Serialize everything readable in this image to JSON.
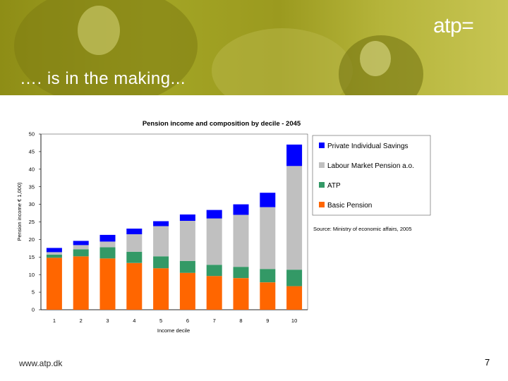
{
  "header": {
    "headline": "…. is in the making...",
    "logo": "atp="
  },
  "footer": {
    "url": "www.atp.dk",
    "page_number": "7"
  },
  "colors": {
    "banner": "#9c9c1e",
    "private_savings": "#0000ff",
    "labour_market": "#c0c0c0",
    "atp": "#339966",
    "basic_pension": "#ff6600"
  },
  "chart_data": {
    "type": "bar",
    "stacked": true,
    "title": "Pension income and composition by decile - 2045",
    "xlabel": "Income decile",
    "ylabel": "Pension income € 1,000)",
    "categories": [
      "1",
      "2",
      "3",
      "4",
      "5",
      "6",
      "7",
      "8",
      "9",
      "10"
    ],
    "ylim": [
      0,
      50
    ],
    "yticks": [
      "0",
      "5",
      "10",
      "15",
      "20",
      "25",
      "30",
      "35",
      "40",
      "45",
      "50"
    ],
    "series": [
      {
        "name": "Basic Pension",
        "color": "#ff6600",
        "values": [
          14.8,
          15.2,
          14.6,
          13.3,
          11.8,
          10.5,
          9.6,
          9.0,
          7.8,
          6.7
        ]
      },
      {
        "name": "ATP",
        "color": "#339966",
        "values": [
          0.9,
          2.0,
          3.2,
          3.2,
          3.4,
          3.4,
          3.2,
          3.2,
          3.8,
          4.7
        ]
      },
      {
        "name": "Labour Market Pension a.o.",
        "color": "#c0c0c0",
        "values": [
          0.7,
          1.2,
          1.6,
          5.0,
          8.6,
          11.4,
          13.2,
          14.8,
          17.6,
          29.5
        ]
      },
      {
        "name": "Private Individual Savings",
        "color": "#0000ff",
        "values": [
          1.2,
          1.2,
          1.9,
          1.6,
          1.4,
          1.8,
          2.4,
          3.0,
          4.1,
          6.1
        ]
      }
    ],
    "legend": [
      "Private Individual Savings",
      "Labour Market Pension a.o.",
      "ATP",
      "Basic Pension"
    ],
    "legend_position": "right",
    "source": "Source: Ministry of economic affairs, 2005",
    "grid": false
  }
}
